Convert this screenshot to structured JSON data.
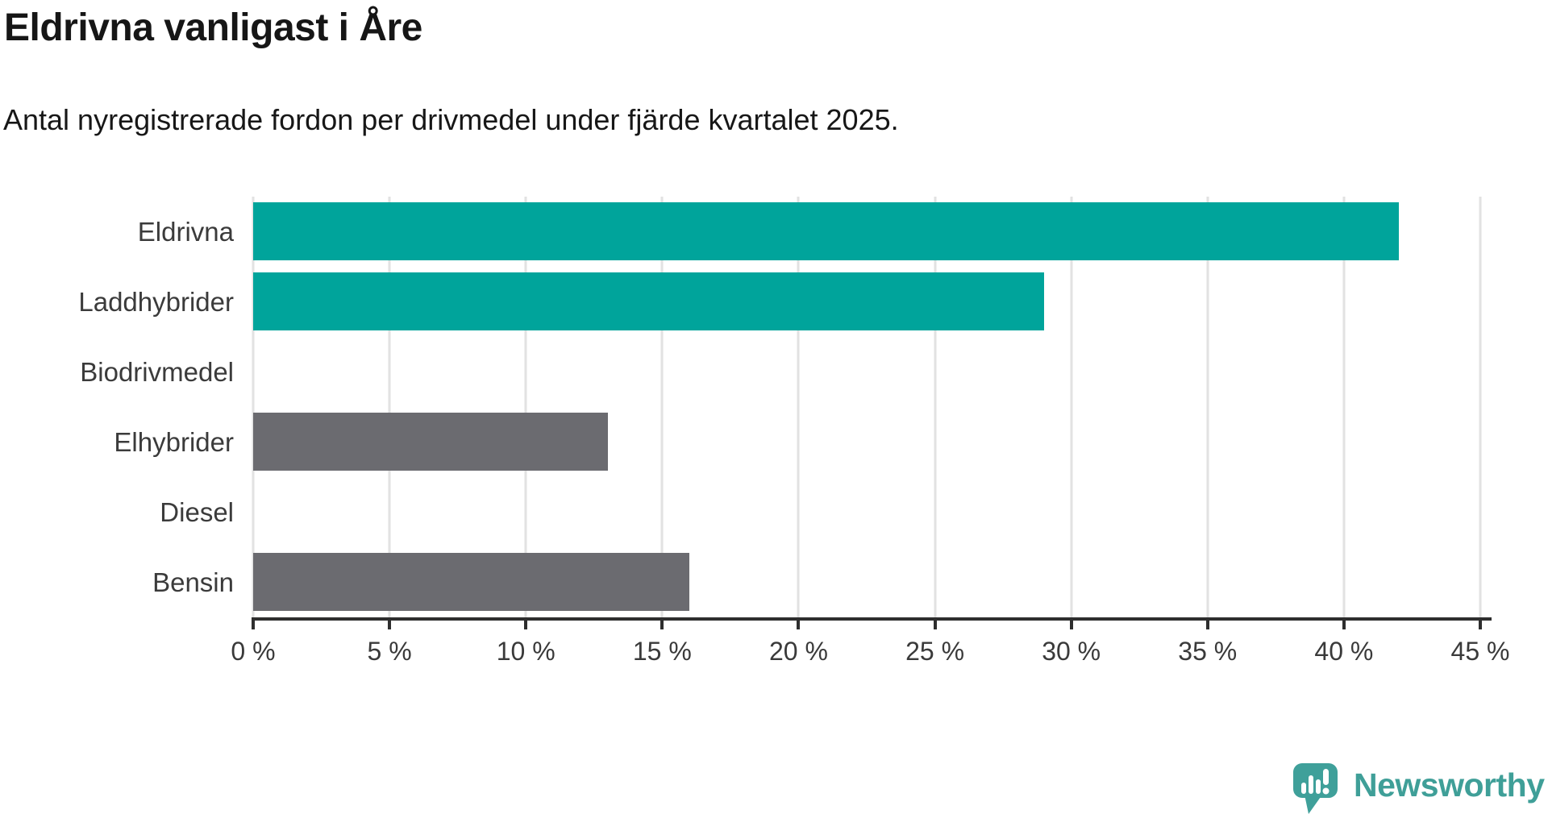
{
  "header": {
    "title": "Eldrivna vanligast i Åre",
    "subtitle": "Antal nyregistrerade fordon per drivmedel under fjärde kvartalet 2025."
  },
  "chart_data": {
    "type": "bar",
    "orientation": "horizontal",
    "title": "Eldrivna vanligast i Åre",
    "subtitle": "Antal nyregistrerade fordon per drivmedel under fjärde kvartalet 2025.",
    "categories": [
      "Eldrivna",
      "Laddhybrider",
      "Biodrivmedel",
      "Elhybrider",
      "Diesel",
      "Bensin"
    ],
    "values": [
      42,
      29,
      0,
      13,
      0,
      16
    ],
    "unit": "%",
    "colors": [
      "#00a49b",
      "#00a49b",
      "#00a49b",
      "#6b6b70",
      "#6b6b70",
      "#6b6b70"
    ],
    "xlabel": "",
    "ylabel": "",
    "xlim": [
      0,
      45
    ],
    "x_tick_step": 5,
    "x_tick_labels": [
      "0 %",
      "5 %",
      "10 %",
      "15 %",
      "20 %",
      "25 %",
      "30 %",
      "35 %",
      "40 %",
      "45 %"
    ],
    "grid": "vertical",
    "legend": "none"
  },
  "branding": {
    "logo_text": "Newsworthy",
    "logo_color": "#3f9f98",
    "icon": "newsworthy-speech-bubble-chart-icon"
  },
  "colors": {
    "bar_teal": "#00a49b",
    "bar_gray": "#6b6b70",
    "grid": "#e2e2e2",
    "axis": "#2e2e2e",
    "label": "#3b3b3b",
    "title": "#161616"
  }
}
